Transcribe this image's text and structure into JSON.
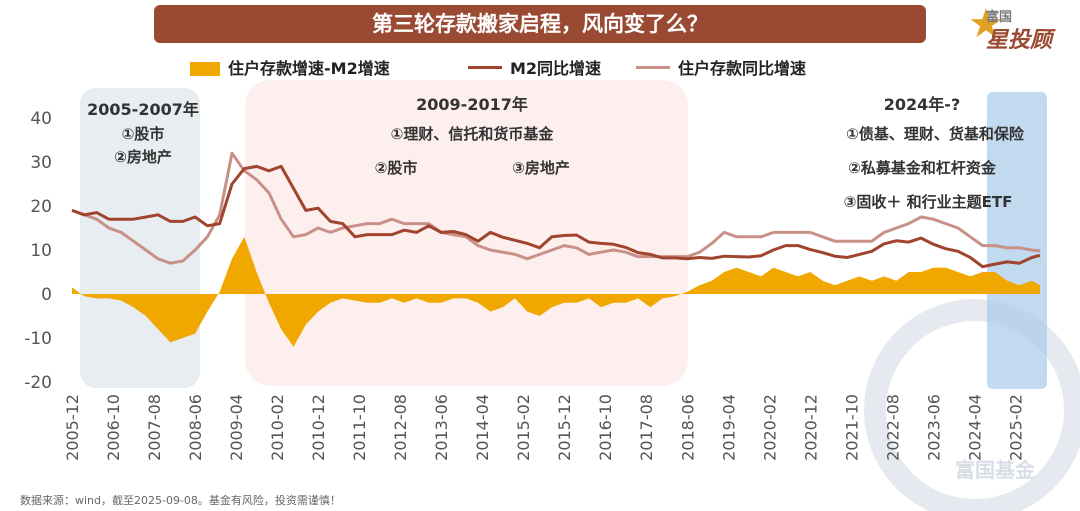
{
  "title": "第三轮存款搬家启程，风向变了么？",
  "logo": {
    "top": "富国",
    "main": "星投顾"
  },
  "source": "数据来源：wind，截至2025-09-08。基金有风险，投资需谨慎！",
  "watermark": "富国基金",
  "colors": {
    "bar": "#f0a800",
    "m2": "#a0442e",
    "deposit": "#c99088",
    "title_bg": "#9a4a32"
  },
  "chart_data": {
    "type": "line",
    "ylim": [
      -20,
      40
    ],
    "yticks": [
      -20,
      -10,
      0,
      10,
      20,
      30,
      40
    ],
    "xlim": [
      "2005-12",
      "2025-08"
    ],
    "xticks": [
      "2005-12",
      "2006-10",
      "2007-08",
      "2008-06",
      "2009-04",
      "2010-02",
      "2010-12",
      "2011-10",
      "2012-08",
      "2013-06",
      "2014-04",
      "2015-02",
      "2015-12",
      "2016-10",
      "2017-08",
      "2018-06",
      "2019-04",
      "2020-02",
      "2020-12",
      "2021-10",
      "2022-08",
      "2023-06",
      "2024-04",
      "2025-02"
    ],
    "series": [
      {
        "name": "住户存款增速-M2增速",
        "kind": "area",
        "x": [
          "2005-12",
          "2006-03",
          "2006-06",
          "2006-09",
          "2006-12",
          "2007-03",
          "2007-06",
          "2007-09",
          "2007-12",
          "2008-03",
          "2008-06",
          "2008-09",
          "2008-12",
          "2009-03",
          "2009-06",
          "2009-09",
          "2009-12",
          "2010-03",
          "2010-06",
          "2010-09",
          "2010-12",
          "2011-03",
          "2011-06",
          "2011-09",
          "2011-12",
          "2012-03",
          "2012-06",
          "2012-09",
          "2012-12",
          "2013-03",
          "2013-06",
          "2013-09",
          "2013-12",
          "2014-03",
          "2014-06",
          "2014-09",
          "2014-12",
          "2015-03",
          "2015-06",
          "2015-09",
          "2015-12",
          "2016-03",
          "2016-06",
          "2016-09",
          "2016-12",
          "2017-03",
          "2017-06",
          "2017-09",
          "2017-12",
          "2018-03",
          "2018-06",
          "2018-09",
          "2018-12",
          "2019-03",
          "2019-06",
          "2019-09",
          "2019-12",
          "2020-03",
          "2020-06",
          "2020-09",
          "2020-12",
          "2021-03",
          "2021-06",
          "2021-09",
          "2021-12",
          "2022-03",
          "2022-06",
          "2022-09",
          "2022-12",
          "2023-03",
          "2023-06",
          "2023-09",
          "2023-12",
          "2024-03",
          "2024-06",
          "2024-09",
          "2024-12",
          "2025-03",
          "2025-06",
          "2025-08"
        ],
        "values": [
          1.5,
          -0.5,
          -1,
          -1,
          -1.5,
          -3,
          -5,
          -8,
          -11,
          -10,
          -9,
          -4,
          0.5,
          8,
          13,
          5,
          -2,
          -8,
          -12,
          -7,
          -4,
          -2,
          -1,
          -1.5,
          -2,
          -2,
          -1,
          -2,
          -1,
          -2,
          -2,
          -1,
          -1,
          -2,
          -4,
          -3,
          -1,
          -4,
          -5,
          -3,
          -2,
          -2,
          -1,
          -3,
          -2,
          -2,
          -1,
          -3,
          -1,
          -0.5,
          0.5,
          2,
          3,
          5,
          6,
          5,
          4,
          6,
          5,
          4,
          5,
          3,
          2,
          3,
          4,
          3,
          4,
          3,
          5,
          5,
          6,
          6,
          5,
          4,
          5,
          5,
          3,
          2,
          3,
          2
        ]
      },
      {
        "name": "M2同比增速",
        "kind": "line",
        "x": [
          "2005-12",
          "2006-03",
          "2006-06",
          "2006-09",
          "2006-12",
          "2007-03",
          "2007-06",
          "2007-09",
          "2007-12",
          "2008-03",
          "2008-06",
          "2008-09",
          "2008-12",
          "2009-03",
          "2009-06",
          "2009-09",
          "2009-12",
          "2010-03",
          "2010-06",
          "2010-09",
          "2010-12",
          "2011-03",
          "2011-06",
          "2011-09",
          "2011-12",
          "2012-03",
          "2012-06",
          "2012-09",
          "2012-12",
          "2013-03",
          "2013-06",
          "2013-09",
          "2013-12",
          "2014-03",
          "2014-06",
          "2014-09",
          "2014-12",
          "2015-03",
          "2015-06",
          "2015-09",
          "2015-12",
          "2016-03",
          "2016-06",
          "2016-09",
          "2016-12",
          "2017-03",
          "2017-06",
          "2017-09",
          "2017-12",
          "2018-03",
          "2018-06",
          "2018-09",
          "2018-12",
          "2019-03",
          "2019-06",
          "2019-09",
          "2019-12",
          "2020-03",
          "2020-06",
          "2020-09",
          "2020-12",
          "2021-03",
          "2021-06",
          "2021-09",
          "2021-12",
          "2022-03",
          "2022-06",
          "2022-09",
          "2022-12",
          "2023-03",
          "2023-06",
          "2023-09",
          "2023-12",
          "2024-03",
          "2024-06",
          "2024-09",
          "2024-12",
          "2025-03",
          "2025-06",
          "2025-08"
        ],
        "values": [
          19,
          18,
          18.5,
          17,
          17,
          17,
          17.5,
          18,
          16.5,
          16.5,
          17.5,
          15.5,
          16,
          25,
          28.5,
          29,
          28,
          29,
          24,
          19,
          19.5,
          16.5,
          16,
          13,
          13.5,
          13.5,
          13.5,
          14.5,
          14,
          15.5,
          14,
          14.2,
          13.5,
          12,
          14,
          12.9,
          12.2,
          11.5,
          10.5,
          13,
          13.3,
          13.4,
          11.8,
          11.5,
          11.3,
          10.6,
          9.4,
          9,
          8.2,
          8.2,
          8,
          8.3,
          8.1,
          8.6,
          8.5,
          8.4,
          8.7,
          10,
          11,
          11,
          10.1,
          9.4,
          8.6,
          8.3,
          9,
          9.7,
          11.4,
          12.1,
          11.8,
          12.7,
          11.3,
          10.3,
          9.7,
          8.3,
          6.2,
          6.8,
          7.3,
          7,
          8.3,
          8.8
        ]
      },
      {
        "name": "住户存款同比增速",
        "kind": "line",
        "x": [
          "2005-12",
          "2006-03",
          "2006-06",
          "2006-09",
          "2006-12",
          "2007-03",
          "2007-06",
          "2007-09",
          "2007-12",
          "2008-03",
          "2008-06",
          "2008-09",
          "2008-12",
          "2009-03",
          "2009-06",
          "2009-09",
          "2009-12",
          "2010-03",
          "2010-06",
          "2010-09",
          "2010-12",
          "2011-03",
          "2011-06",
          "2011-09",
          "2011-12",
          "2012-03",
          "2012-06",
          "2012-09",
          "2012-12",
          "2013-03",
          "2013-06",
          "2013-09",
          "2013-12",
          "2014-03",
          "2014-06",
          "2014-09",
          "2014-12",
          "2015-03",
          "2015-06",
          "2015-09",
          "2015-12",
          "2016-03",
          "2016-06",
          "2016-09",
          "2016-12",
          "2017-03",
          "2017-06",
          "2017-09",
          "2017-12",
          "2018-03",
          "2018-06",
          "2018-09",
          "2018-12",
          "2019-03",
          "2019-06",
          "2019-09",
          "2019-12",
          "2020-03",
          "2020-06",
          "2020-09",
          "2020-12",
          "2021-03",
          "2021-06",
          "2021-09",
          "2021-12",
          "2022-03",
          "2022-06",
          "2022-09",
          "2022-12",
          "2023-03",
          "2023-06",
          "2023-09",
          "2023-12",
          "2024-03",
          "2024-06",
          "2024-09",
          "2024-12",
          "2025-03",
          "2025-06",
          "2025-08"
        ],
        "values": [
          19,
          18,
          17,
          15,
          14,
          12,
          10,
          8,
          7,
          7.5,
          10,
          13,
          18,
          32,
          28,
          26,
          23,
          17,
          13,
          13.5,
          15,
          14,
          15,
          15.5,
          16,
          16,
          17,
          16,
          16,
          16,
          14,
          13.5,
          13,
          11,
          10,
          9.5,
          9,
          8,
          9,
          10,
          11,
          10.5,
          9,
          9.5,
          10,
          9.5,
          8.5,
          8.5,
          8.5,
          8.5,
          8.5,
          9.5,
          11.5,
          14,
          13,
          13,
          13,
          14,
          14,
          14,
          14,
          13,
          12,
          12,
          12,
          12,
          14,
          15,
          16,
          17.5,
          17,
          16,
          15,
          13,
          11,
          11,
          10.5,
          10.5,
          10,
          9.8
        ]
      }
    ],
    "annotations": [
      {
        "heading": "2005-2007年",
        "items": [
          "①股市",
          "②房地产"
        ]
      },
      {
        "heading": "2009-2017年",
        "items": [
          "①理财、信托和货币基金",
          "②股市",
          "③房地产"
        ]
      },
      {
        "heading": "2024年-?",
        "items": [
          "①债基、理财、货基和保险",
          "②私募基金和杠杆资金",
          "③固收＋ 和行业主题ETF"
        ]
      }
    ]
  }
}
